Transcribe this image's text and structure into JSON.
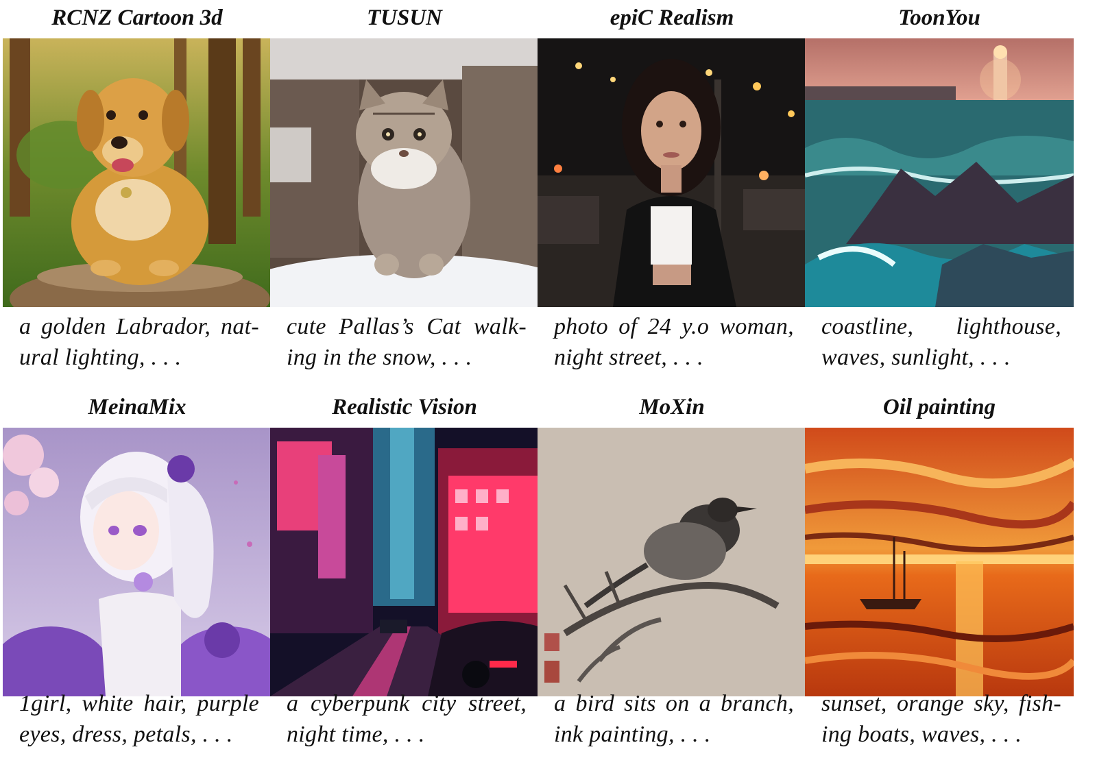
{
  "panels": [
    {
      "title": "RCNZ Cartoon 3d",
      "caption_lines": [
        "a golden Labrador, nat-",
        "ural lighting, . . ."
      ],
      "image": "golden-labrador-forest-image"
    },
    {
      "title": "TUSUN",
      "caption_lines": [
        "cute Pallas’s Cat walk-",
        "ing in the snow, . . ."
      ],
      "image": "pallas-cat-snow-image"
    },
    {
      "title": "epiC Realism",
      "caption_lines": [
        "photo of 24 y.o woman,",
        "night street, . . ."
      ],
      "image": "woman-night-street-image"
    },
    {
      "title": "ToonYou",
      "caption_lines": [
        "coastline, lighthouse,",
        "waves, sunlight, . . ."
      ],
      "image": "coastline-lighthouse-image"
    },
    {
      "title": "MeinaMix",
      "caption_lines": [
        "1girl, white hair, purple",
        "eyes, dress, petals, . . ."
      ],
      "image": "anime-girl-petals-image"
    },
    {
      "title": "Realistic Vision",
      "caption_lines": [
        "a cyberpunk city street,",
        "night time, . . ."
      ],
      "image": "cyberpunk-street-image"
    },
    {
      "title": "MoXin",
      "caption_lines": [
        "a bird sits on a branch,",
        "ink painting, . . ."
      ],
      "image": "ink-bird-branch-image"
    },
    {
      "title": "Oil painting",
      "caption_lines": [
        "sunset, orange sky, fish-",
        "ing boats, waves, . . ."
      ],
      "image": "oil-sunset-boats-image"
    }
  ]
}
